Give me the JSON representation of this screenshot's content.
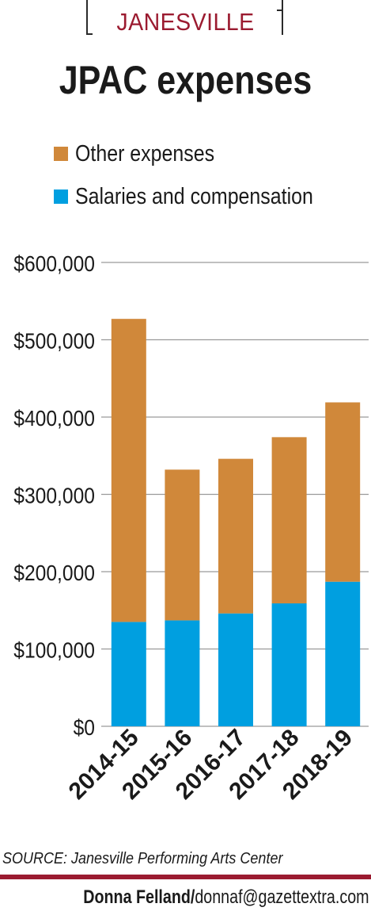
{
  "header": {
    "kicker": "JANESVILLE",
    "title": "JPAC expenses"
  },
  "legend": [
    {
      "label": "Other expenses",
      "color": "#d0883a"
    },
    {
      "label": "Salaries and compensation",
      "color": "#009fe0"
    }
  ],
  "chart_data": {
    "type": "bar",
    "stacked": true,
    "categories": [
      "2014-15",
      "2015-16",
      "2016-17",
      "2017-18",
      "2018-19"
    ],
    "series": [
      {
        "name": "Salaries and compensation",
        "values": [
          135000,
          137000,
          146000,
          159000,
          187000
        ],
        "color": "#009fe0"
      },
      {
        "name": "Other expenses",
        "values": [
          392000,
          195000,
          200000,
          215000,
          232000
        ],
        "color": "#d0883a"
      }
    ],
    "ylim": [
      0,
      600000
    ],
    "yticks": [
      {
        "value": 0,
        "label": "$0"
      },
      {
        "value": 100000,
        "label": "$100,000"
      },
      {
        "value": 200000,
        "label": "$200,000"
      },
      {
        "value": 300000,
        "label": "$300,000"
      },
      {
        "value": 400000,
        "label": "$400,000"
      },
      {
        "value": 500000,
        "label": "$500,000"
      },
      {
        "value": 600000,
        "label": "$600,000"
      }
    ],
    "grid": true,
    "legend_position": "top"
  },
  "footer": {
    "source": "SOURCE: Janesville Performing Arts Center",
    "credit_name": "Donna Felland/",
    "credit_email": "donnaf@gazettextra.com"
  }
}
